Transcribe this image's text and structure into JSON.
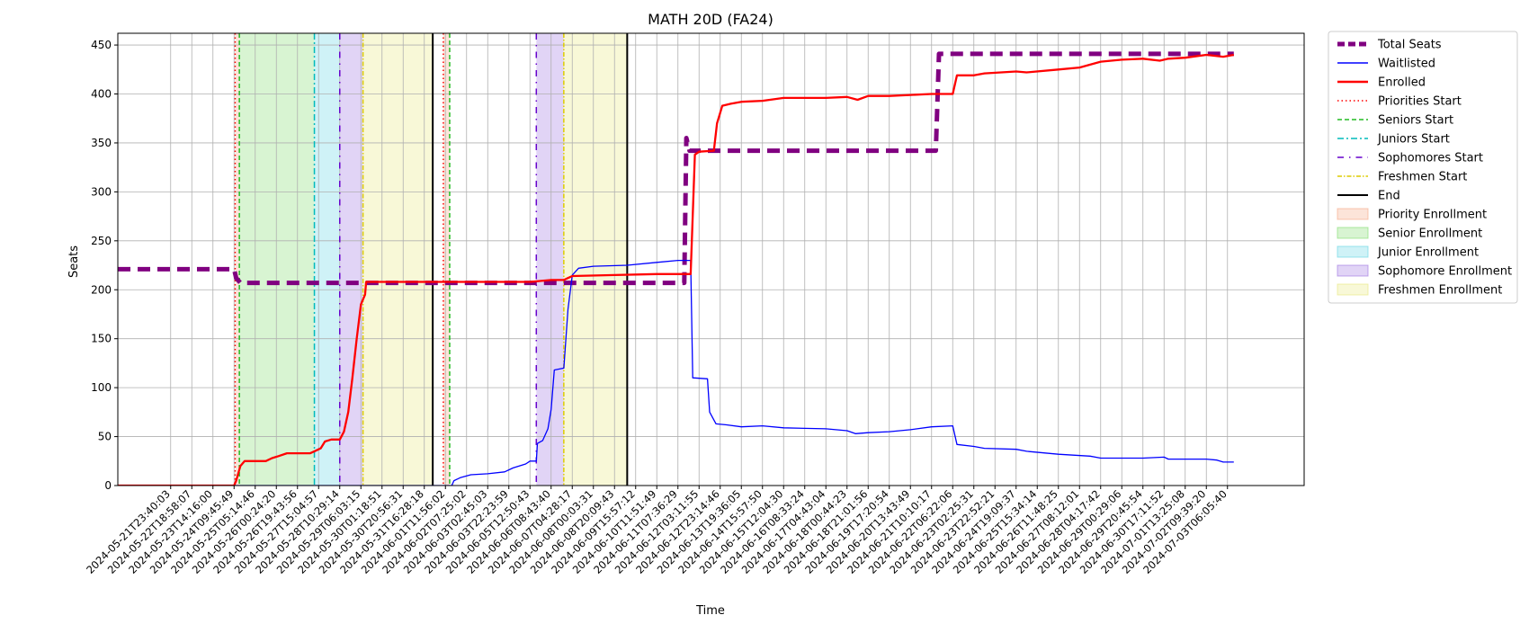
{
  "chart_data": {
    "type": "line",
    "title": "MATH 20D (FA24)",
    "xlabel": "Time",
    "ylabel": "Seats",
    "ylim": [
      0,
      462
    ],
    "y_ticks": [
      0,
      50,
      100,
      150,
      200,
      250,
      300,
      350,
      400,
      450
    ],
    "grid": true,
    "legend_position": "outside-right",
    "x_tick_labels": [
      "2024-05-21T23:40:03",
      "2024-05-22T18:58:07",
      "2024-05-23T14:16:00",
      "2024-05-24T09:45:49",
      "2024-05-25T05:14:46",
      "2024-05-26T00:24:20",
      "2024-05-26T19:43:56",
      "2024-05-27T15:04:57",
      "2024-05-28T10:29:14",
      "2024-05-29T06:03:15",
      "2024-05-30T01:18:51",
      "2024-05-30T20:56:31",
      "2024-05-31T16:28:18",
      "2024-06-01T11:56:02",
      "2024-06-02T07:25:02",
      "2024-06-03T02:45:03",
      "2024-06-03T22:23:59",
      "2024-06-05T12:50:43",
      "2024-06-06T08:43:40",
      "2024-06-07T04:28:17",
      "2024-06-08T00:03:31",
      "2024-06-08T20:09:43",
      "2024-06-09T15:57:12",
      "2024-06-10T11:51:49",
      "2024-06-11T07:36:29",
      "2024-06-12T03:11:55",
      "2024-06-12T23:14:46",
      "2024-06-13T19:36:05",
      "2024-06-14T15:57:50",
      "2024-06-15T12:04:30",
      "2024-06-16T08:33:24",
      "2024-06-17T04:43:04",
      "2024-06-18T00:44:23",
      "2024-06-18T21:01:56",
      "2024-06-19T17:20:54",
      "2024-06-20T13:43:49",
      "2024-06-21T10:10:17",
      "2024-06-22T06:22:06",
      "2024-06-23T02:25:31",
      "2024-06-23T22:52:21",
      "2024-06-24T19:09:37",
      "2024-06-25T15:34:14",
      "2024-06-26T11:48:25",
      "2024-06-27T08:12:01",
      "2024-06-28T04:17:42",
      "2024-06-29T00:29:06",
      "2024-06-29T20:45:54",
      "2024-06-30T17:11:52",
      "2024-07-01T13:25:08",
      "2024-07-02T09:39:20",
      "2024-07-03T06:05:40"
    ],
    "x_range_ticks": [
      -2.5,
      50.3
    ],
    "enrollment_periods": [
      {
        "name": "Priority Enrollment",
        "start": 3.05,
        "end": 3.25,
        "color": "#f4a582"
      },
      {
        "name": "Senior Enrollment",
        "start": 3.25,
        "end": 6.8,
        "color": "#7fdc6a"
      },
      {
        "name": "Junior Enrollment",
        "start": 6.8,
        "end": 8.0,
        "color": "#5fd3e3"
      },
      {
        "name": "Sophomore Enrollment",
        "start": 8.0,
        "end": 9.1,
        "color": "#9b6fe0"
      },
      {
        "name": "Freshmen Enrollment",
        "start": 9.1,
        "end": 12.4,
        "color": "#e8e87a"
      },
      {
        "name": "Priority Enrollment",
        "start": 12.9,
        "end": 13.2,
        "color": "#f4a582"
      },
      {
        "name": "Sophomore Enrollment",
        "start": 17.3,
        "end": 18.6,
        "color": "#9b6fe0"
      },
      {
        "name": "Freshmen Enrollment",
        "start": 18.6,
        "end": 21.6,
        "color": "#e8e87a"
      }
    ],
    "markers": [
      {
        "name": "Priorities Start",
        "x": 3.05
      },
      {
        "name": "Seniors Start",
        "x": 3.25
      },
      {
        "name": "Juniors Start",
        "x": 6.8
      },
      {
        "name": "Sophomores Start",
        "x": 8.0
      },
      {
        "name": "Freshmen Start",
        "x": 9.1
      },
      {
        "name": "End",
        "x": 12.4
      },
      {
        "name": "Priorities Start",
        "x": 12.9
      },
      {
        "name": "Seniors Start",
        "x": 13.2
      },
      {
        "name": "Sophomores Start",
        "x": 17.3
      },
      {
        "name": "Freshmen Start",
        "x": 18.6
      },
      {
        "name": "End",
        "x": 21.6
      }
    ],
    "series": [
      {
        "name": "Total Seats",
        "color": "#800080",
        "style": "dashed-thick",
        "points": [
          [
            -2.5,
            221
          ],
          [
            3.0,
            221
          ],
          [
            3.1,
            212
          ],
          [
            3.3,
            207
          ],
          [
            24.3,
            207
          ],
          [
            24.4,
            355
          ],
          [
            24.55,
            342
          ],
          [
            36.2,
            342
          ],
          [
            36.35,
            441
          ],
          [
            50.3,
            441
          ]
        ]
      },
      {
        "name": "Waitlisted",
        "color": "#0000ff",
        "style": "solid-thin",
        "points": [
          [
            -2.5,
            0
          ],
          [
            13.3,
            0
          ],
          [
            13.4,
            5
          ],
          [
            13.7,
            8
          ],
          [
            14.2,
            11
          ],
          [
            15.0,
            12
          ],
          [
            15.8,
            14
          ],
          [
            16.2,
            18
          ],
          [
            16.8,
            22
          ],
          [
            17.0,
            25
          ],
          [
            17.3,
            25
          ],
          [
            17.35,
            43
          ],
          [
            17.6,
            46
          ],
          [
            17.85,
            58
          ],
          [
            18.0,
            78
          ],
          [
            18.15,
            118
          ],
          [
            18.6,
            120
          ],
          [
            18.8,
            180
          ],
          [
            19.0,
            215
          ],
          [
            19.3,
            222
          ],
          [
            20.0,
            224
          ],
          [
            21.6,
            225
          ],
          [
            23.0,
            228
          ],
          [
            24.0,
            230
          ],
          [
            24.6,
            230
          ],
          [
            24.7,
            110
          ],
          [
            25.4,
            109
          ],
          [
            25.5,
            75
          ],
          [
            25.8,
            63
          ],
          [
            26.3,
            62
          ],
          [
            27.0,
            60
          ],
          [
            28.0,
            61
          ],
          [
            29.0,
            59
          ],
          [
            31.0,
            58
          ],
          [
            32.0,
            56
          ],
          [
            32.4,
            53
          ],
          [
            33.0,
            54
          ],
          [
            34.0,
            55
          ],
          [
            35.0,
            57
          ],
          [
            36.0,
            60
          ],
          [
            37.0,
            61
          ],
          [
            37.2,
            42
          ],
          [
            38.0,
            40
          ],
          [
            38.5,
            38
          ],
          [
            40.0,
            37
          ],
          [
            40.5,
            35
          ],
          [
            42.0,
            32
          ],
          [
            43.5,
            30
          ],
          [
            44.0,
            28
          ],
          [
            46.0,
            28
          ],
          [
            47.0,
            29
          ],
          [
            47.2,
            27
          ],
          [
            49.0,
            27
          ],
          [
            49.5,
            26
          ],
          [
            49.8,
            24
          ],
          [
            50.3,
            24
          ]
        ]
      },
      {
        "name": "Enrolled",
        "color": "#ff0000",
        "style": "solid",
        "points": [
          [
            -2.5,
            0
          ],
          [
            3.0,
            0
          ],
          [
            3.1,
            5
          ],
          [
            3.3,
            20
          ],
          [
            3.5,
            25
          ],
          [
            4.5,
            25
          ],
          [
            4.8,
            28
          ],
          [
            5.1,
            30
          ],
          [
            5.5,
            33
          ],
          [
            6.6,
            33
          ],
          [
            6.8,
            35
          ],
          [
            7.1,
            38
          ],
          [
            7.3,
            45
          ],
          [
            7.6,
            47
          ],
          [
            8.0,
            47
          ],
          [
            8.2,
            55
          ],
          [
            8.4,
            75
          ],
          [
            8.6,
            110
          ],
          [
            8.8,
            150
          ],
          [
            9.0,
            185
          ],
          [
            9.1,
            190
          ],
          [
            9.2,
            195
          ],
          [
            9.25,
            208
          ],
          [
            12.4,
            208
          ],
          [
            17.0,
            208
          ],
          [
            18.0,
            210
          ],
          [
            18.6,
            210
          ],
          [
            18.8,
            212
          ],
          [
            19.0,
            214
          ],
          [
            21.0,
            215
          ],
          [
            23.0,
            216
          ],
          [
            24.6,
            216
          ],
          [
            24.8,
            338
          ],
          [
            25.0,
            341
          ],
          [
            25.7,
            342
          ],
          [
            25.85,
            370
          ],
          [
            26.1,
            388
          ],
          [
            26.5,
            390
          ],
          [
            27.0,
            392
          ],
          [
            28.0,
            393
          ],
          [
            29.0,
            396
          ],
          [
            31.0,
            396
          ],
          [
            32.0,
            397
          ],
          [
            32.5,
            394
          ],
          [
            33.0,
            398
          ],
          [
            34.0,
            398
          ],
          [
            35.0,
            399
          ],
          [
            36.0,
            400
          ],
          [
            37.0,
            400
          ],
          [
            37.2,
            419
          ],
          [
            38.0,
            419
          ],
          [
            38.5,
            421
          ],
          [
            40.0,
            423
          ],
          [
            40.5,
            422
          ],
          [
            42.0,
            425
          ],
          [
            43.0,
            427
          ],
          [
            44.0,
            433
          ],
          [
            45.0,
            435
          ],
          [
            46.0,
            436
          ],
          [
            46.8,
            434
          ],
          [
            47.2,
            436
          ],
          [
            48.0,
            437
          ],
          [
            49.0,
            440
          ],
          [
            49.8,
            438
          ],
          [
            50.3,
            440
          ]
        ]
      }
    ]
  },
  "legend": {
    "items": [
      {
        "label": "Total Seats",
        "kind": "line",
        "color": "#800080",
        "dash": "8,4",
        "width": 5
      },
      {
        "label": "Waitlisted",
        "kind": "line",
        "color": "#0000ff",
        "dash": "",
        "width": 1.5
      },
      {
        "label": "Enrolled",
        "kind": "line",
        "color": "#ff0000",
        "dash": "",
        "width": 2.5
      },
      {
        "label": "Priorities Start",
        "kind": "line",
        "color": "#ff0000",
        "dash": "1.5,3",
        "width": 1.5
      },
      {
        "label": "Seniors Start",
        "kind": "line",
        "color": "#22bb22",
        "dash": "5,3",
        "width": 1.5
      },
      {
        "label": "Juniors Start",
        "kind": "line",
        "color": "#00bbbb",
        "dash": "7,3,2,3",
        "width": 1.5
      },
      {
        "label": "Sophomores Start",
        "kind": "line",
        "color": "#6600cc",
        "dash": "7,6,1.5,6",
        "width": 1.5
      },
      {
        "label": "Freshmen Start",
        "kind": "line",
        "color": "#ddcc00",
        "dash": "5,2,1.5,2",
        "width": 1.5
      },
      {
        "label": "End",
        "kind": "line",
        "color": "#000000",
        "dash": "",
        "width": 2
      },
      {
        "label": "Priority Enrollment",
        "kind": "patch",
        "color": "#f4a582"
      },
      {
        "label": "Senior Enrollment",
        "kind": "patch",
        "color": "#7fdc6a"
      },
      {
        "label": "Junior Enrollment",
        "kind": "patch",
        "color": "#5fd3e3"
      },
      {
        "label": "Sophomore Enrollment",
        "kind": "patch",
        "color": "#9b6fe0"
      },
      {
        "label": "Freshmen Enrollment",
        "kind": "patch",
        "color": "#e8e87a"
      }
    ]
  }
}
